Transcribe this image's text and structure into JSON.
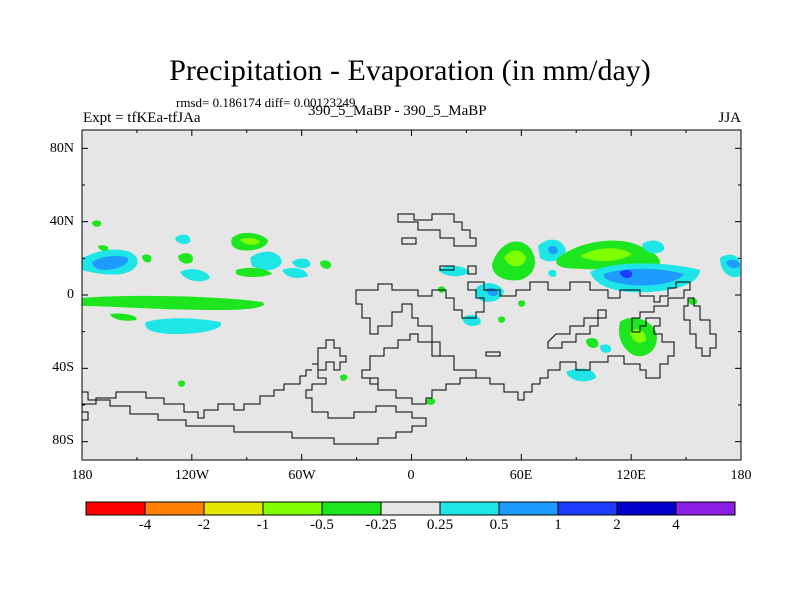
{
  "header": {
    "title": "Precipitation - Evaporation (in mm/day)",
    "rmsd_line": "rmsd= 0.186174 diff= 0.00123249",
    "experiment": "Expt = tfKEa-tfJAa",
    "subtitle": "390_5_MaBP - 390_5_MaBP",
    "season": "JJA"
  },
  "map": {
    "background_color": "#e6e6e6",
    "lat_labels": [
      "80N",
      "40N",
      "0",
      "40S",
      "80S"
    ],
    "lon_labels": [
      "180",
      "120W",
      "60W",
      "0",
      "60E",
      "120E",
      "180"
    ]
  },
  "colorbar": {
    "colors": [
      "#ff0000",
      "#ff8000",
      "#e6e600",
      "#80ff00",
      "#1ee61e",
      "#e6e6e6",
      "#1ee6e6",
      "#1e9bff",
      "#1e3cff",
      "#0000cd",
      "#8c1ee6"
    ],
    "labels": [
      "-4",
      "-2",
      "-1",
      "-0.5",
      "-0.25",
      "0.25",
      "0.5",
      "1",
      "2",
      "4"
    ]
  }
}
